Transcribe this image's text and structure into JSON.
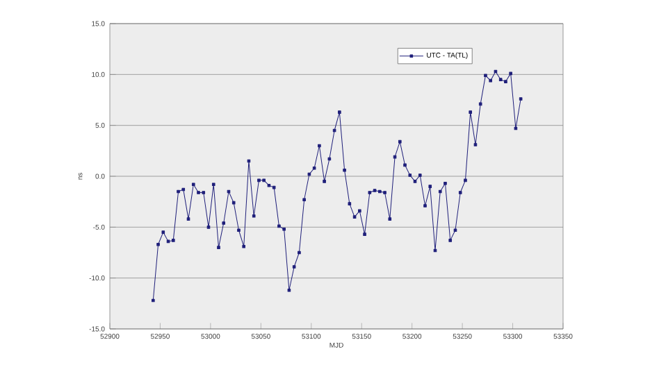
{
  "chart_data": {
    "type": "line",
    "xlabel": "MJD",
    "ylabel": "ns",
    "xlim": [
      52900,
      53350
    ],
    "xticks": [
      52900,
      52950,
      53000,
      53050,
      53100,
      53150,
      53200,
      53250,
      53300,
      53350
    ],
    "ylim": [
      -15,
      15
    ],
    "yticks": [
      {
        "value": -15,
        "label": "-15.0"
      },
      {
        "value": -10,
        "label": "-10.0"
      },
      {
        "value": -5,
        "label": "-5.0"
      },
      {
        "value": 0,
        "label": "0.0"
      },
      {
        "value": 5,
        "label": "5.0"
      },
      {
        "value": 10,
        "label": "10.0"
      },
      {
        "value": 15,
        "label": "15.0"
      }
    ],
    "grid": "y",
    "legend": "top right",
    "marker": "square",
    "line_style": "solid",
    "series": [
      {
        "name": "UTC - TA(TL)",
        "color": "#1f1f7a",
        "x": [
          52943,
          52948,
          52953,
          52958,
          52963,
          52968,
          52973,
          52978,
          52983,
          52988,
          52993,
          52998,
          53003,
          53008,
          53013,
          53018,
          53023,
          53028,
          53033,
          53038,
          53043,
          53048,
          53053,
          53058,
          53063,
          53068,
          53073,
          53078,
          53083,
          53088,
          53093,
          53098,
          53103,
          53108,
          53113,
          53118,
          53123,
          53128,
          53133,
          53138,
          53143,
          53148,
          53153,
          53158,
          53163,
          53168,
          53173,
          53178,
          53183,
          53188,
          53193,
          53198,
          53203,
          53208,
          53213,
          53218,
          53223,
          53228,
          53233,
          53238,
          53243,
          53248,
          53253,
          53258,
          53263,
          53268,
          53273,
          53278,
          53283,
          53288,
          53293,
          53298,
          53303,
          53308
        ],
        "values": [
          -12.2,
          -6.7,
          -5.5,
          -6.4,
          -6.3,
          -1.5,
          -1.3,
          -4.2,
          -0.8,
          -1.6,
          -1.6,
          -5.0,
          -0.8,
          -7.0,
          -4.6,
          -1.5,
          -2.6,
          -5.3,
          -6.9,
          1.5,
          -3.9,
          -0.4,
          -0.4,
          -0.9,
          -1.1,
          -4.9,
          -5.2,
          -11.2,
          -8.9,
          -7.5,
          -2.3,
          0.2,
          0.8,
          3.0,
          -0.5,
          1.7,
          4.5,
          6.3,
          0.6,
          -2.7,
          -4.0,
          -3.4,
          -5.7,
          -1.6,
          -1.4,
          -1.5,
          -1.6,
          -4.2,
          1.9,
          3.4,
          1.1,
          0.1,
          -0.5,
          0.1,
          -2.9,
          -1.0,
          -7.3,
          -1.5,
          -0.7,
          -6.3,
          -5.3,
          -1.6,
          -0.4,
          6.3,
          3.1,
          7.1,
          9.9,
          9.4,
          10.3,
          9.5,
          9.3,
          10.1,
          4.7,
          7.6
        ]
      }
    ]
  }
}
